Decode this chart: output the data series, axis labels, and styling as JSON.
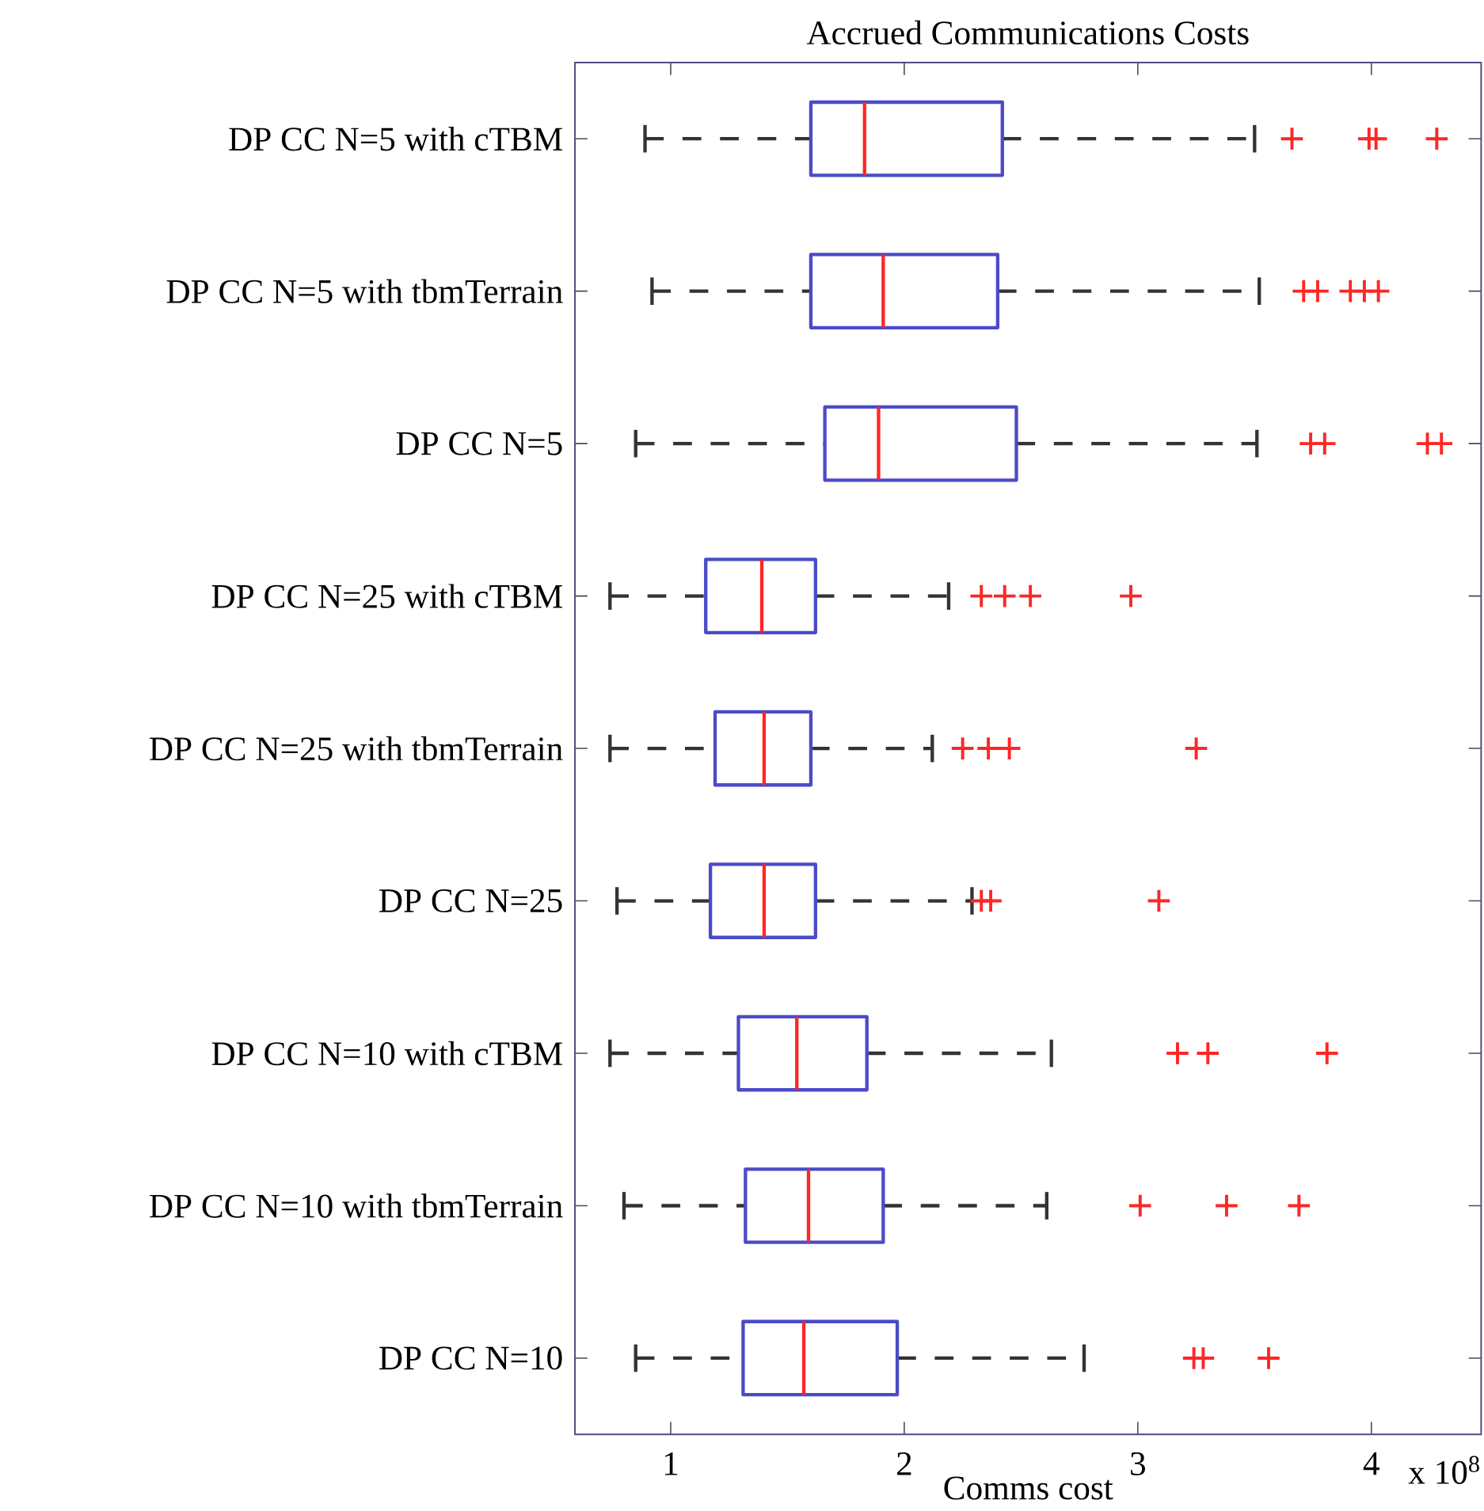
{
  "chart_data": {
    "type": "box",
    "title": "Accrued Communications Costs",
    "xlabel": "Comms cost",
    "orientation": "horizontal",
    "categories": [
      "DP CC N=5 with cTBM",
      "DP CC N=5 with tbmTerrain",
      "DP CC N=5",
      "DP CC N=25 with cTBM",
      "DP CC N=25 with tbmTerrain",
      "DP CC N=25",
      "DP CC N=10 with cTBM",
      "DP CC N=10 with tbmTerrain",
      "DP CC N=10"
    ],
    "xlim": [
      0.59,
      4.47
    ],
    "xticks": [
      1,
      2,
      3,
      4
    ],
    "annotations": [
      "x 10$^{8}$"
    ],
    "series": [
      {
        "color": "#4b4bc8",
        "boxes": [
          {
            "low": 0.89,
            "q1": 1.6,
            "median": 1.83,
            "q3": 2.42,
            "high": 3.5,
            "outliers": [
              3.66,
              3.99,
              4.02,
              4.28
            ]
          },
          {
            "low": 0.92,
            "q1": 1.6,
            "median": 1.91,
            "q3": 2.4,
            "high": 3.52,
            "outliers": [
              3.71,
              3.77,
              3.91,
              3.97,
              4.03
            ]
          },
          {
            "low": 0.85,
            "q1": 1.66,
            "median": 1.89,
            "q3": 2.48,
            "high": 3.51,
            "outliers": [
              3.74,
              3.8,
              4.24,
              4.3
            ]
          },
          {
            "low": 0.74,
            "q1": 1.15,
            "median": 1.39,
            "q3": 1.62,
            "high": 2.19,
            "outliers": [
              2.33,
              2.43,
              2.54,
              2.97
            ]
          },
          {
            "low": 0.74,
            "q1": 1.19,
            "median": 1.4,
            "q3": 1.6,
            "high": 2.12,
            "outliers": [
              2.25,
              2.36,
              2.45,
              3.25
            ]
          },
          {
            "low": 0.77,
            "q1": 1.17,
            "median": 1.4,
            "q3": 1.62,
            "high": 2.29,
            "outliers": [
              2.33,
              2.37,
              3.09
            ]
          },
          {
            "low": 0.74,
            "q1": 1.29,
            "median": 1.54,
            "q3": 1.84,
            "high": 2.63,
            "outliers": [
              3.17,
              3.3,
              3.81
            ]
          },
          {
            "low": 0.8,
            "q1": 1.32,
            "median": 1.59,
            "q3": 1.91,
            "high": 2.61,
            "outliers": [
              3.01,
              3.38,
              3.69
            ]
          },
          {
            "low": 0.85,
            "q1": 1.31,
            "median": 1.57,
            "q3": 1.97,
            "high": 2.77,
            "outliers": [
              3.24,
              3.28,
              3.56
            ]
          }
        ]
      }
    ]
  }
}
